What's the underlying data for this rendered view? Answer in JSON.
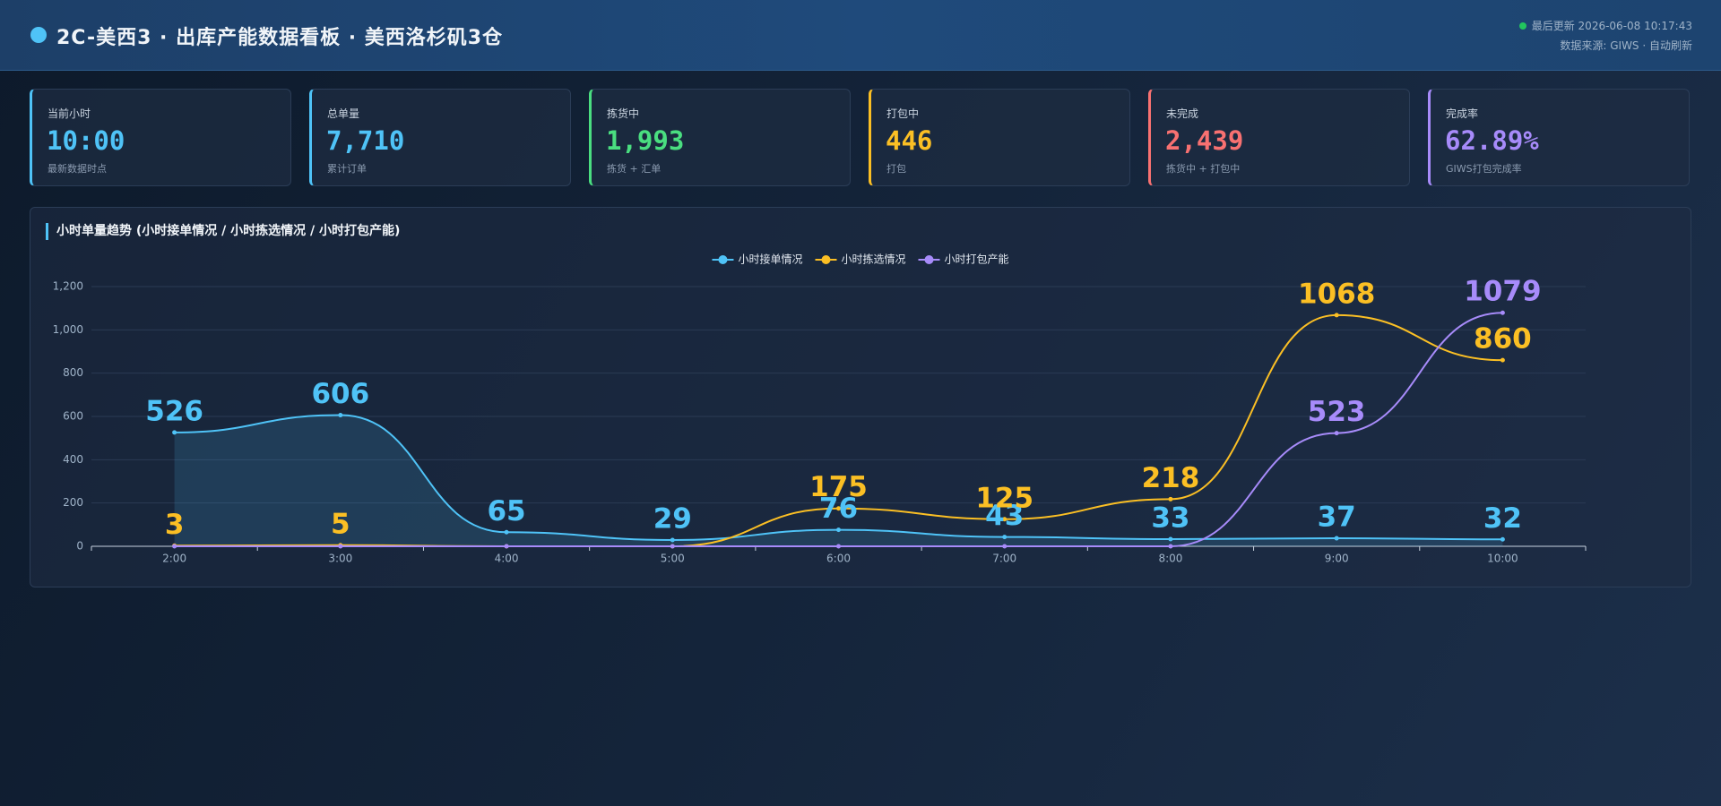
{
  "header": {
    "title": "2C-美西3 · 出库产能数据看板 · 美西洛杉矶3仓",
    "updated": "最后更新 2026-06-08 10:17:43",
    "source": "数据来源: GIWS · 自动刷新"
  },
  "kpis": [
    {
      "label": "当前小时",
      "value": "10:00",
      "note": "最新数据时点",
      "color": "#4fc3f7"
    },
    {
      "label": "总单量",
      "value": "7,710",
      "note": "累计订单",
      "color": "#4fc3f7"
    },
    {
      "label": "拣货中",
      "value": "1,993",
      "note": "拣货 + 汇单",
      "color": "#4ade80"
    },
    {
      "label": "打包中",
      "value": "446",
      "note": "打包",
      "color": "#fbbf24"
    },
    {
      "label": "未完成",
      "value": "2,439",
      "note": "拣货中 + 打包中",
      "color": "#f87171"
    },
    {
      "label": "完成率",
      "value": "62.89%",
      "note": "GIWS打包完成率",
      "color": "#a78bfa"
    }
  ],
  "chart_data": {
    "type": "line",
    "title": "小时单量趋势 (小时接单情况 / 小时拣选情况 / 小时打包产能)",
    "categories": [
      "2:00",
      "3:00",
      "4:00",
      "5:00",
      "6:00",
      "7:00",
      "8:00",
      "9:00",
      "10:00"
    ],
    "series": [
      {
        "name": "小时接单情况",
        "color": "#4fc3f7",
        "area": true,
        "values": [
          526,
          606,
          65,
          29,
          76,
          43,
          33,
          37,
          32
        ]
      },
      {
        "name": "小时拣选情况",
        "color": "#fbbf24",
        "values": [
          3,
          5,
          0,
          0,
          175,
          125,
          218,
          1068,
          860
        ]
      },
      {
        "name": "小时打包产能",
        "color": "#a78bfa",
        "values": [
          0,
          0,
          0,
          0,
          0,
          0,
          0,
          523,
          1079
        ]
      }
    ],
    "ylim": [
      0,
      1200
    ],
    "yticks": [
      0,
      200,
      400,
      600,
      800,
      {
        "value": 1000,
        "label": "1,000"
      },
      {
        "value": 1200,
        "label": "1,200"
      }
    ],
    "grid": true,
    "legend": "top"
  }
}
